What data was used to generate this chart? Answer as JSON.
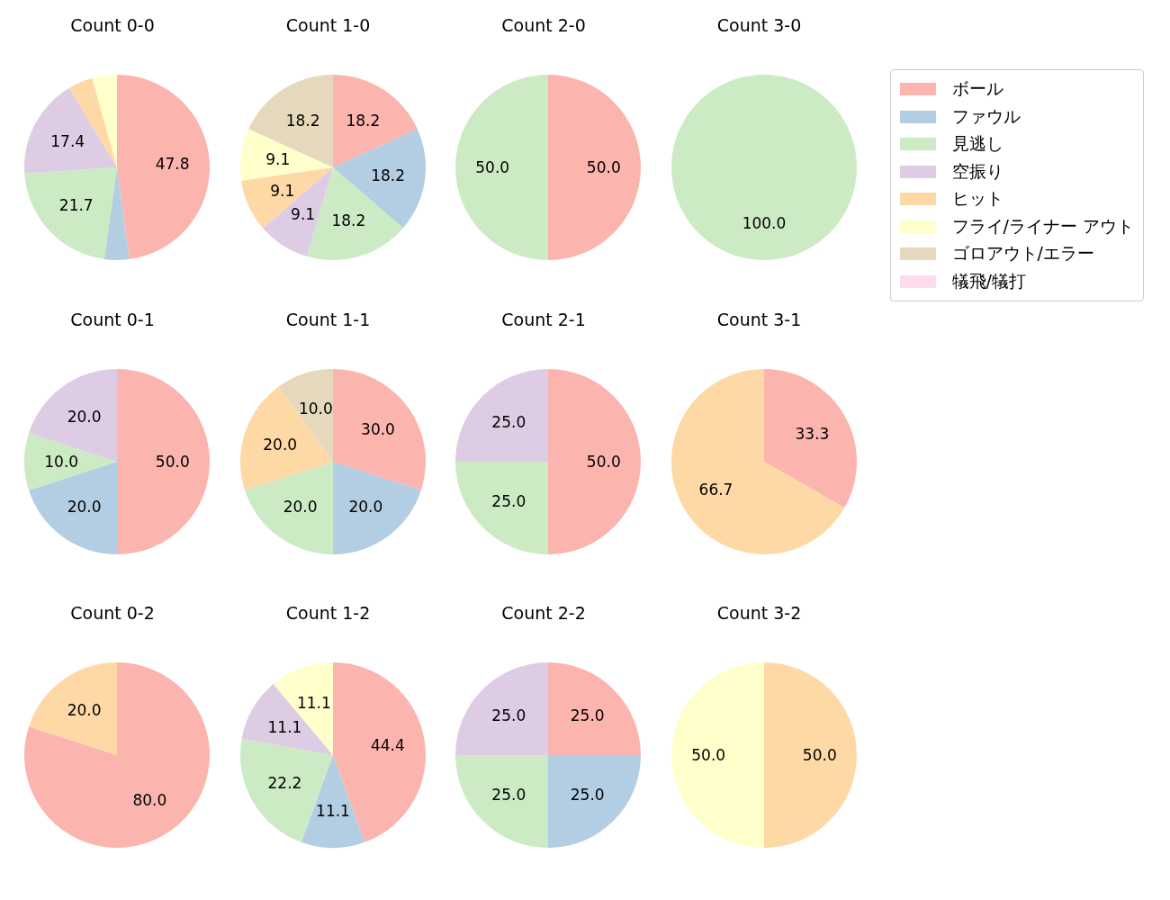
{
  "chart_data": [
    {
      "type": "pie",
      "title": "Count 0-0",
      "categories": [
        null,
        null,
        null,
        null,
        null,
        null,
        null,
        null
      ],
      "values": [
        47.8,
        4.3,
        21.7,
        17.4,
        4.3,
        4.3,
        0,
        0
      ],
      "value_labels": [
        "47.8",
        null,
        "21.7",
        "17.4",
        null,
        null,
        null,
        null
      ],
      "colors": [
        "#fbb4ae",
        "#b3cde3",
        "#ccebc5",
        "#decbe4",
        "#fed9a6",
        "#ffffcc",
        "#e5d8bd",
        "#fddaec"
      ]
    },
    {
      "type": "pie",
      "title": "Count 1-0",
      "categories": [
        null,
        null,
        null,
        null,
        null,
        null,
        null,
        null
      ],
      "values": [
        18.2,
        18.2,
        18.2,
        9.1,
        9.1,
        9.1,
        18.2,
        0
      ],
      "value_labels": [
        "18.2",
        "18.2",
        "18.2",
        "9.1",
        "9.1",
        "9.1",
        "18.2",
        null
      ],
      "colors": [
        "#fbb4ae",
        "#b3cde3",
        "#ccebc5",
        "#decbe4",
        "#fed9a6",
        "#ffffcc",
        "#e5d8bd",
        "#fddaec"
      ]
    },
    {
      "type": "pie",
      "title": "Count 2-0",
      "categories": [
        null,
        null,
        null,
        null,
        null,
        null,
        null,
        null
      ],
      "values": [
        50.0,
        0,
        50.0,
        0,
        0,
        0,
        0,
        0
      ],
      "value_labels": [
        "50.0",
        null,
        "50.0",
        null,
        null,
        null,
        null,
        null
      ],
      "colors": [
        "#fbb4ae",
        "#b3cde3",
        "#ccebc5",
        "#decbe4",
        "#fed9a6",
        "#ffffcc",
        "#e5d8bd",
        "#fddaec"
      ]
    },
    {
      "type": "pie",
      "title": "Count 3-0",
      "legend": "right",
      "categories": [
        "ボール",
        "ファウル",
        "見逃し",
        "空振り",
        "ヒット",
        "フライ/ライナー アウト",
        "ゴロアウト/エラー",
        "犠飛/犠打"
      ],
      "values": [
        0,
        0,
        100.0,
        0,
        0,
        0,
        0,
        0
      ],
      "value_labels": [
        null,
        null,
        "100.0",
        null,
        null,
        null,
        null,
        null
      ],
      "colors": [
        "#fbb4ae",
        "#b3cde3",
        "#ccebc5",
        "#decbe4",
        "#fed9a6",
        "#ffffcc",
        "#e5d8bd",
        "#fddaec"
      ]
    },
    {
      "type": "pie",
      "title": "Count 0-1",
      "categories": [
        null,
        null,
        null,
        null,
        null,
        null,
        null,
        null
      ],
      "values": [
        50.0,
        20.0,
        10.0,
        20.0,
        0,
        0,
        0,
        0
      ],
      "value_labels": [
        "50.0",
        "20.0",
        "10.0",
        "20.0",
        null,
        null,
        null,
        null
      ],
      "colors": [
        "#fbb4ae",
        "#b3cde3",
        "#ccebc5",
        "#decbe4",
        "#fed9a6",
        "#ffffcc",
        "#e5d8bd",
        "#fddaec"
      ]
    },
    {
      "type": "pie",
      "title": "Count 1-1",
      "categories": [
        null,
        null,
        null,
        null,
        null,
        null,
        null,
        null
      ],
      "values": [
        30.0,
        20.0,
        20.0,
        0,
        20.0,
        0,
        10.0,
        0
      ],
      "value_labels": [
        "30.0",
        "20.0",
        "20.0",
        null,
        "20.0",
        null,
        "10.0",
        null
      ],
      "colors": [
        "#fbb4ae",
        "#b3cde3",
        "#ccebc5",
        "#decbe4",
        "#fed9a6",
        "#ffffcc",
        "#e5d8bd",
        "#fddaec"
      ]
    },
    {
      "type": "pie",
      "title": "Count 2-1",
      "categories": [
        null,
        null,
        null,
        null,
        null,
        null,
        null,
        null
      ],
      "values": [
        50.0,
        0,
        25.0,
        25.0,
        0,
        0,
        0,
        0
      ],
      "value_labels": [
        "50.0",
        null,
        "25.0",
        "25.0",
        null,
        null,
        null,
        null
      ],
      "colors": [
        "#fbb4ae",
        "#b3cde3",
        "#ccebc5",
        "#decbe4",
        "#fed9a6",
        "#ffffcc",
        "#e5d8bd",
        "#fddaec"
      ]
    },
    {
      "type": "pie",
      "title": "Count 3-1",
      "categories": [
        null,
        null,
        null,
        null,
        null,
        null,
        null,
        null
      ],
      "values": [
        33.3,
        0,
        0,
        0,
        66.7,
        0,
        0,
        0
      ],
      "value_labels": [
        "33.3",
        null,
        null,
        null,
        "66.7",
        null,
        null,
        null
      ],
      "colors": [
        "#fbb4ae",
        "#b3cde3",
        "#ccebc5",
        "#decbe4",
        "#fed9a6",
        "#ffffcc",
        "#e5d8bd",
        "#fddaec"
      ]
    },
    {
      "type": "pie",
      "title": "Count 0-2",
      "categories": [
        null,
        null,
        null,
        null,
        null,
        null,
        null,
        null
      ],
      "values": [
        80.0,
        0,
        0,
        0,
        20.0,
        0,
        0,
        0
      ],
      "value_labels": [
        "80.0",
        null,
        null,
        null,
        "20.0",
        null,
        null,
        null
      ],
      "colors": [
        "#fbb4ae",
        "#b3cde3",
        "#ccebc5",
        "#decbe4",
        "#fed9a6",
        "#ffffcc",
        "#e5d8bd",
        "#fddaec"
      ]
    },
    {
      "type": "pie",
      "title": "Count 1-2",
      "categories": [
        null,
        null,
        null,
        null,
        null,
        null,
        null,
        null
      ],
      "values": [
        44.4,
        11.1,
        22.2,
        11.1,
        0,
        11.1,
        0,
        0
      ],
      "value_labels": [
        "44.4",
        "11.1",
        "22.2",
        "11.1",
        null,
        "11.1",
        null,
        null
      ],
      "colors": [
        "#fbb4ae",
        "#b3cde3",
        "#ccebc5",
        "#decbe4",
        "#fed9a6",
        "#ffffcc",
        "#e5d8bd",
        "#fddaec"
      ]
    },
    {
      "type": "pie",
      "title": "Count 2-2",
      "categories": [
        null,
        null,
        null,
        null,
        null,
        null,
        null,
        null
      ],
      "values": [
        25.0,
        25.0,
        25.0,
        25.0,
        0,
        0,
        0,
        0
      ],
      "value_labels": [
        "25.0",
        "25.0",
        "25.0",
        "25.0",
        null,
        null,
        null,
        null
      ],
      "colors": [
        "#fbb4ae",
        "#b3cde3",
        "#ccebc5",
        "#decbe4",
        "#fed9a6",
        "#ffffcc",
        "#e5d8bd",
        "#fddaec"
      ]
    },
    {
      "type": "pie",
      "title": "Count 3-2",
      "categories": [
        null,
        null,
        null,
        null,
        null,
        null,
        null,
        null
      ],
      "values": [
        0,
        0,
        0,
        0,
        50.0,
        50.0,
        0,
        0
      ],
      "value_labels": [
        null,
        null,
        null,
        null,
        "50.0",
        "50.0",
        null,
        null
      ],
      "colors": [
        "#fbb4ae",
        "#b3cde3",
        "#ccebc5",
        "#decbe4",
        "#fed9a6",
        "#ffffcc",
        "#e5d8bd",
        "#fddaec"
      ]
    }
  ]
}
